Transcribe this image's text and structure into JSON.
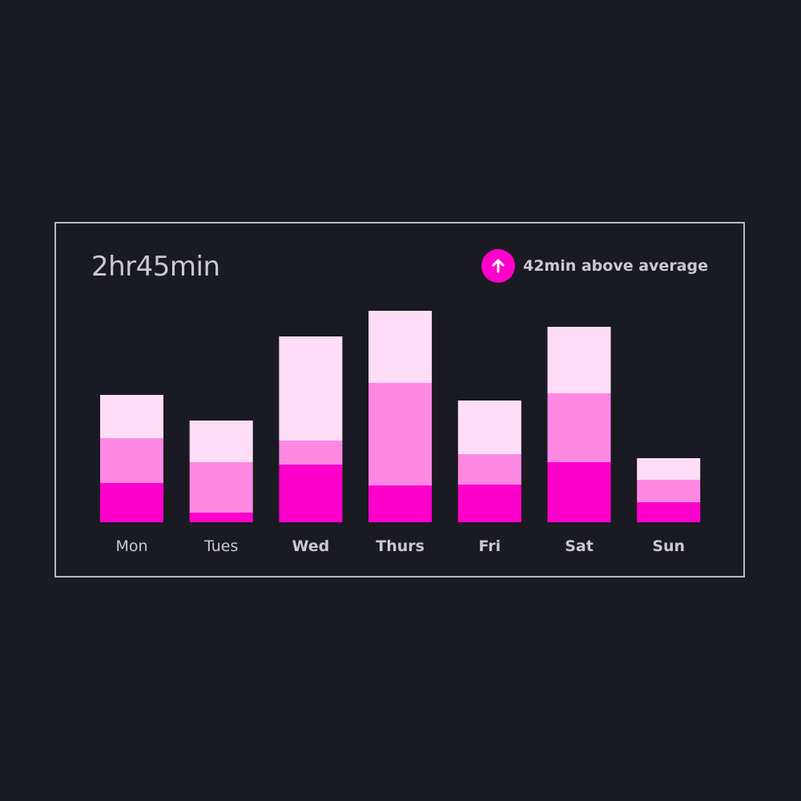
{
  "header": {
    "total_time": "2hr45min",
    "comparison_text": "42min above average"
  },
  "badge": {
    "icon": "arrow-up-icon",
    "color": "#ff00cc"
  },
  "chart_data": {
    "type": "bar",
    "stacked": true,
    "categories": [
      "Mon",
      "Tues",
      "Wed",
      "Thurs",
      "Fri",
      "Sat",
      "Sun"
    ],
    "bold_categories": [
      "Wed",
      "Thurs",
      "Fri",
      "Sat",
      "Sun"
    ],
    "series": [
      {
        "values": [
          49,
          12,
          72,
          46,
          47,
          75,
          25
        ],
        "color": "#ff00cc"
      },
      {
        "values": [
          56,
          63,
          30,
          128,
          38,
          86,
          28
        ],
        "color": "#ff88e3"
      },
      {
        "values": [
          54,
          52,
          130,
          90,
          67,
          83,
          27
        ],
        "color": "#ffddf6"
      }
    ],
    "ylim": [
      0,
      265
    ],
    "grid": false,
    "legend": "none"
  }
}
